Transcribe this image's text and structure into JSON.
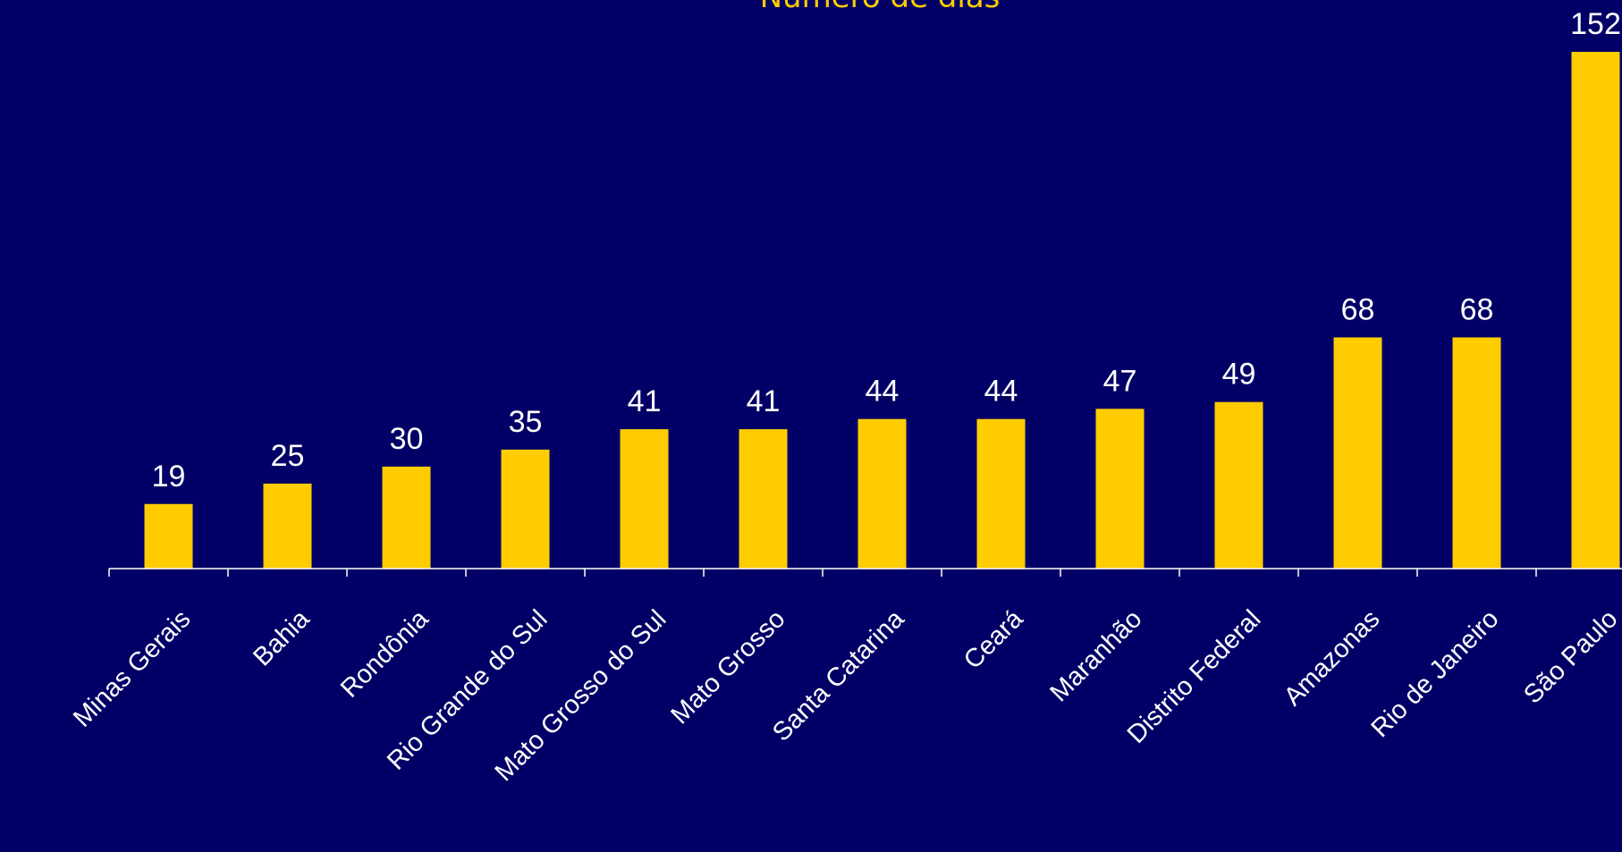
{
  "chart_data": {
    "type": "bar",
    "title": "Número de dias",
    "categories": [
      "Minas Gerais",
      "Bahia",
      "Rondônia",
      "Rio Grande do Sul",
      "Mato Grosso do Sul",
      "Mato Grosso",
      "Santa Catarina",
      "Ceará",
      "Maranhão",
      "Distrito Federal",
      "Amazonas",
      "Rio de Janeiro",
      "São Paulo"
    ],
    "values": [
      19,
      25,
      30,
      35,
      41,
      41,
      44,
      44,
      47,
      49,
      68,
      68,
      152
    ],
    "data_labels": [
      "19",
      "25",
      "30",
      "35",
      "41",
      "41",
      "44",
      "44",
      "47",
      "49",
      "68",
      "68",
      "152"
    ],
    "ylim": [
      0,
      152
    ],
    "grid": false,
    "legend": "none"
  },
  "colors": {
    "background": "#020066",
    "bar": "#FFCC00",
    "title": "#FFCC00",
    "text": "#FFFFFF",
    "axis": "#FFFFFF"
  }
}
